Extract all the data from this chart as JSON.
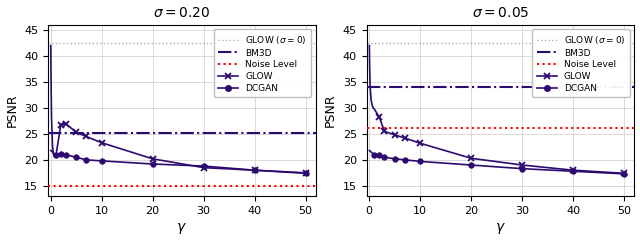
{
  "sigma1": {
    "title": "$\\sigma = 0.20$",
    "glow_sigma0_val": 42.5,
    "bm3d_val": 25.2,
    "noise_level_val": 15.0,
    "glow_x": [
      0.05,
      0.1,
      0.2,
      0.4,
      0.6,
      0.8,
      1.0,
      1.5,
      2.0,
      3.0,
      5.0,
      7.0,
      10.0,
      20.0,
      30.0,
      40.0,
      50.0
    ],
    "glow_y": [
      42.0,
      36.0,
      28.0,
      22.5,
      21.0,
      20.5,
      20.5,
      23.5,
      26.7,
      27.0,
      25.3,
      24.5,
      23.3,
      20.2,
      18.5,
      18.0,
      17.4
    ],
    "dcgan_x": [
      0.05,
      0.1,
      0.2,
      0.4,
      0.6,
      0.8,
      1.0,
      1.5,
      2.0,
      3.0,
      5.0,
      7.0,
      10.0,
      20.0,
      30.0,
      40.0,
      50.0
    ],
    "dcgan_y": [
      21.8,
      21.8,
      21.7,
      21.5,
      21.3,
      21.1,
      21.0,
      21.1,
      21.2,
      21.0,
      20.5,
      20.0,
      19.8,
      19.2,
      18.8,
      18.0,
      17.5
    ]
  },
  "sigma2": {
    "title": "$\\sigma = 0.05$",
    "glow_sigma0_val": 42.5,
    "bm3d_val": 34.0,
    "noise_level_val": 26.2,
    "glow_x": [
      0.05,
      0.1,
      0.2,
      0.4,
      0.6,
      0.8,
      1.0,
      1.5,
      2.0,
      3.0,
      5.0,
      7.0,
      10.0,
      20.0,
      30.0,
      40.0,
      50.0
    ],
    "glow_y": [
      42.0,
      38.0,
      34.0,
      31.5,
      30.5,
      30.0,
      29.8,
      29.0,
      28.2,
      25.5,
      24.8,
      24.2,
      23.2,
      20.3,
      19.0,
      18.0,
      17.4
    ],
    "dcgan_x": [
      0.05,
      0.1,
      0.2,
      0.4,
      0.6,
      0.8,
      1.0,
      1.5,
      2.0,
      3.0,
      5.0,
      7.0,
      10.0,
      20.0,
      30.0,
      40.0,
      50.0
    ],
    "dcgan_y": [
      21.8,
      21.8,
      21.7,
      21.5,
      21.3,
      21.1,
      21.0,
      21.0,
      21.0,
      20.5,
      20.2,
      20.0,
      19.7,
      19.0,
      18.3,
      17.8,
      17.3
    ]
  },
  "glow_marker_x1": [
    2.0,
    3.0,
    5.0,
    7.0,
    10.0,
    20.0,
    30.0,
    40.0,
    50.0
  ],
  "glow_marker_y1": [
    26.7,
    27.0,
    25.3,
    24.5,
    23.3,
    20.2,
    18.5,
    18.0,
    17.4
  ],
  "glow_marker_x2": [
    2.0,
    3.0,
    5.0,
    7.0,
    10.0,
    20.0,
    30.0,
    40.0,
    50.0
  ],
  "glow_marker_y2": [
    28.2,
    25.5,
    24.8,
    24.2,
    23.2,
    20.3,
    19.0,
    18.0,
    17.4
  ],
  "dcgan_marker_x": [
    1.0,
    2.0,
    3.0,
    5.0,
    7.0,
    10.0,
    20.0,
    30.0,
    40.0,
    50.0
  ],
  "dcgan_marker_y1": [
    21.0,
    21.2,
    21.0,
    20.5,
    20.0,
    19.8,
    19.2,
    18.8,
    18.0,
    17.5
  ],
  "dcgan_marker_y2": [
    21.0,
    21.0,
    20.5,
    20.2,
    20.0,
    19.7,
    19.0,
    18.3,
    17.8,
    17.3
  ],
  "xlim": [
    -0.5,
    52
  ],
  "ylim": [
    13,
    46
  ],
  "yticks": [
    15,
    20,
    25,
    30,
    35,
    40,
    45
  ],
  "xticks": [
    0,
    10,
    20,
    30,
    40,
    50
  ],
  "xlabel": "$\\gamma$",
  "ylabel": "PSNR",
  "main_color": "#2d0a6e",
  "red_color": "#ff0000",
  "glow0_color": "#aaaacc",
  "legend_labels": [
    "GLOW ($\\sigma=0$)",
    "BM3D",
    "Noise Level",
    "GLOW",
    "DCGAN"
  ],
  "figsize": [
    6.4,
    2.42
  ],
  "dpi": 100
}
